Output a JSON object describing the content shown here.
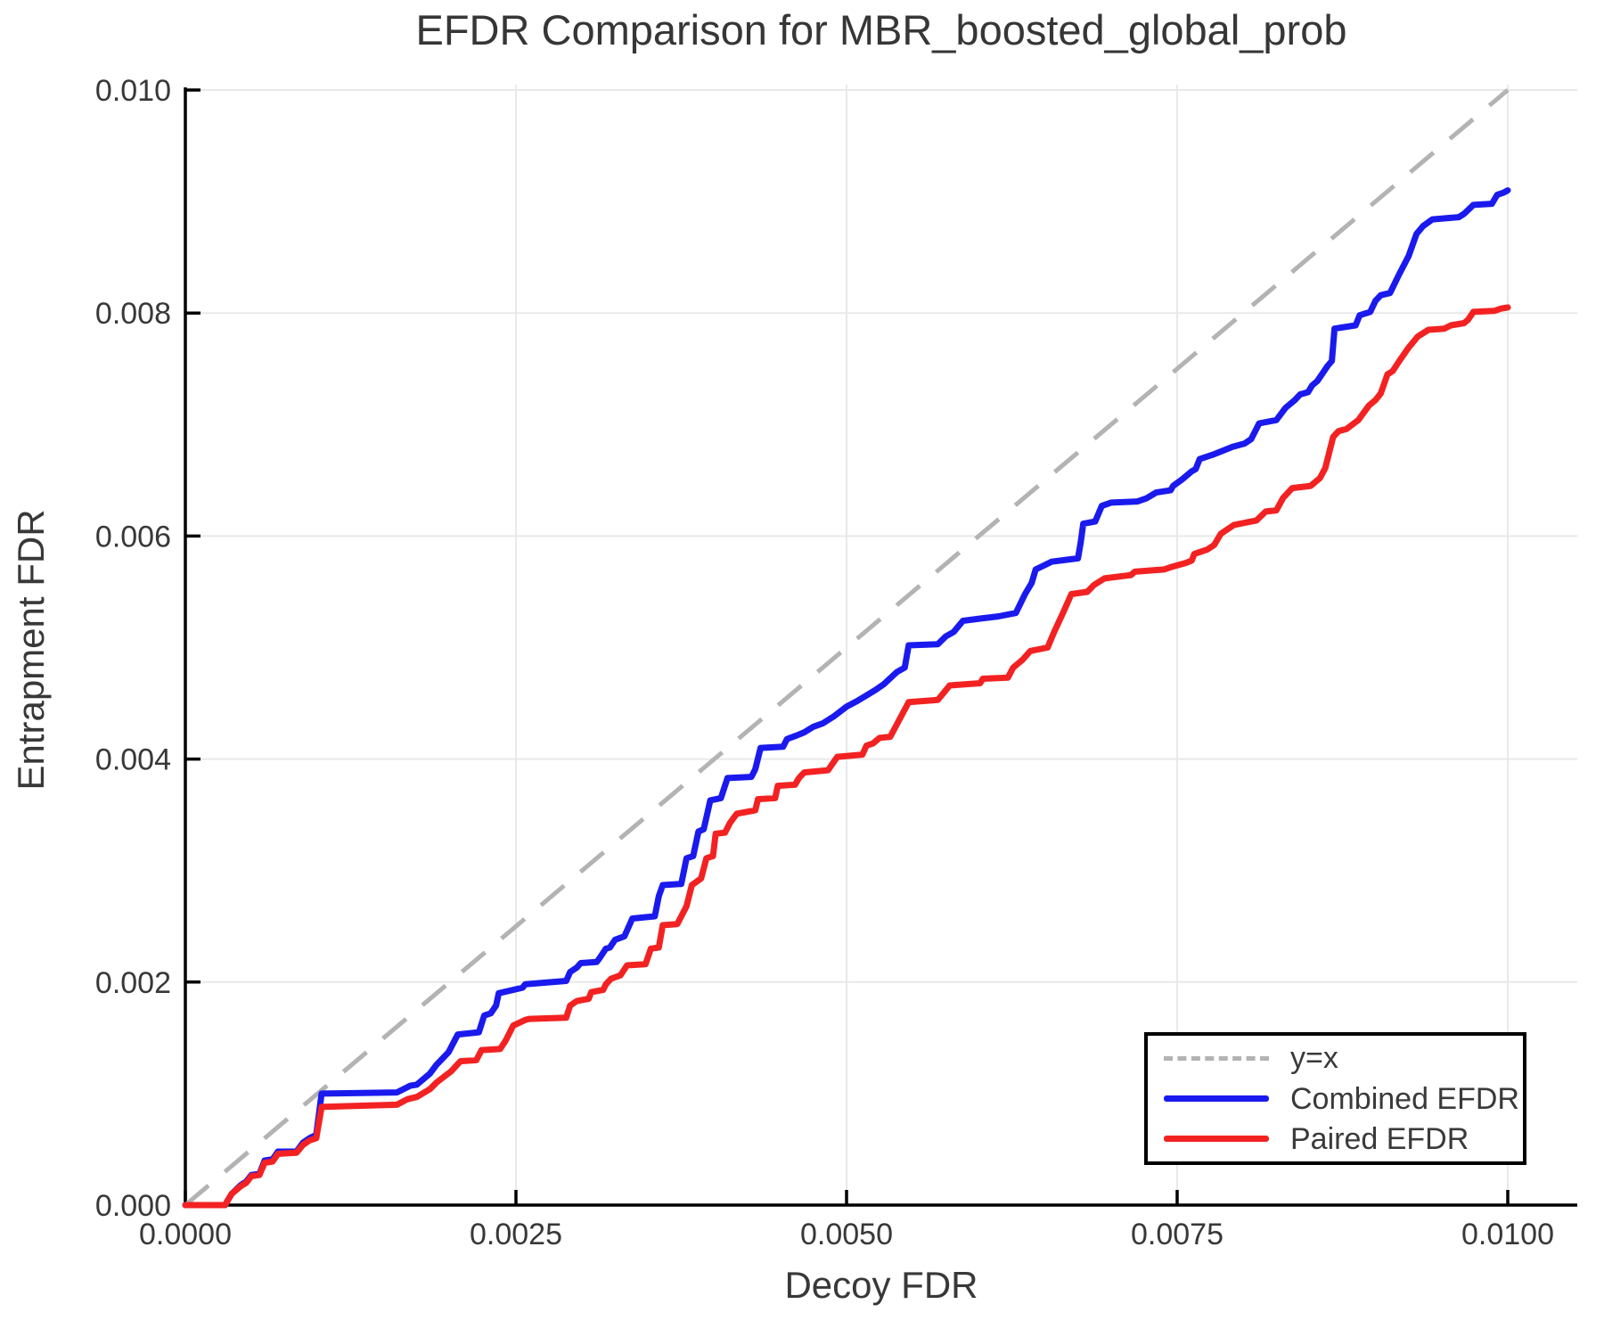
{
  "chart_data": {
    "type": "line",
    "title": "EFDR Comparison for MBR_boosted_global_prob",
    "xlabel": "Decoy FDR",
    "ylabel": "Entrapment FDR",
    "xlim": [
      0.0,
      0.01
    ],
    "ylim": [
      0.0,
      0.01
    ],
    "grid": true,
    "legend_position": "bottom-right",
    "xticks": {
      "values": [
        0.0,
        0.0025,
        0.005,
        0.0075,
        0.01
      ],
      "labels": [
        "0.0000",
        "0.0025",
        "0.0050",
        "0.0075",
        "0.0100"
      ]
    },
    "yticks": {
      "values": [
        0.0,
        0.002,
        0.004,
        0.006,
        0.008,
        0.01
      ],
      "labels": [
        "0.000",
        "0.002",
        "0.004",
        "0.006",
        "0.008",
        "0.010"
      ]
    },
    "reference": {
      "name": "y=x",
      "style": "dashed",
      "color": "#b3b3b3",
      "from": [
        0.0,
        0.0
      ],
      "to": [
        0.01,
        0.01
      ]
    },
    "legend": {
      "items": [
        {
          "label": "y=x",
          "swatch": "dashed"
        },
        {
          "label": "Combined EFDR",
          "swatch": "combined"
        },
        {
          "label": "Paired EFDR",
          "swatch": "paired"
        }
      ]
    },
    "series": [
      {
        "name": "Combined EFDR",
        "color": "#1a1aee",
        "points": [
          [
            0.0,
            0.0
          ],
          [
            0.0003,
            0.0
          ],
          [
            0.00035,
            0.0001
          ],
          [
            0.00042,
            0.00018
          ],
          [
            0.00046,
            0.00021
          ],
          [
            0.0005,
            0.00027
          ],
          [
            0.00056,
            0.00028
          ],
          [
            0.0006,
            0.0004
          ],
          [
            0.00066,
            0.00041
          ],
          [
            0.0007,
            0.00048
          ],
          [
            0.00084,
            0.00048
          ],
          [
            0.00089,
            0.00056
          ],
          [
            0.00094,
            0.0006
          ],
          [
            0.00099,
            0.00063
          ],
          [
            0.00103,
            0.001
          ],
          [
            0.0016,
            0.00101
          ],
          [
            0.00165,
            0.00104
          ],
          [
            0.0017,
            0.00107
          ],
          [
            0.00175,
            0.00108
          ],
          [
            0.00185,
            0.00118
          ],
          [
            0.0019,
            0.00126
          ],
          [
            0.00199,
            0.00137
          ],
          [
            0.00206,
            0.00153
          ],
          [
            0.00222,
            0.00155
          ],
          [
            0.00226,
            0.0017
          ],
          [
            0.00231,
            0.00172
          ],
          [
            0.00235,
            0.00179
          ],
          [
            0.00237,
            0.0019
          ],
          [
            0.00255,
            0.00195
          ],
          [
            0.00257,
            0.00198
          ],
          [
            0.00288,
            0.00201
          ],
          [
            0.00291,
            0.00209
          ],
          [
            0.00296,
            0.00213
          ],
          [
            0.00299,
            0.00217
          ],
          [
            0.00311,
            0.00218
          ],
          [
            0.00313,
            0.00221
          ],
          [
            0.00318,
            0.0023
          ],
          [
            0.00321,
            0.00231
          ],
          [
            0.00325,
            0.00238
          ],
          [
            0.00332,
            0.00241
          ],
          [
            0.00338,
            0.00257
          ],
          [
            0.00355,
            0.00259
          ],
          [
            0.00358,
            0.00277
          ],
          [
            0.00361,
            0.00287
          ],
          [
            0.00375,
            0.00288
          ],
          [
            0.00379,
            0.00311
          ],
          [
            0.00384,
            0.00313
          ],
          [
            0.00388,
            0.00335
          ],
          [
            0.00392,
            0.00337
          ],
          [
            0.00397,
            0.00363
          ],
          [
            0.00405,
            0.00365
          ],
          [
            0.0041,
            0.00383
          ],
          [
            0.00428,
            0.00384
          ],
          [
            0.00431,
            0.00391
          ],
          [
            0.00435,
            0.0041
          ],
          [
            0.00452,
            0.00411
          ],
          [
            0.00455,
            0.00418
          ],
          [
            0.00462,
            0.00421
          ],
          [
            0.00468,
            0.00424
          ],
          [
            0.00475,
            0.00429
          ],
          [
            0.00482,
            0.00432
          ],
          [
            0.0049,
            0.00438
          ],
          [
            0.005,
            0.00447
          ],
          [
            0.00508,
            0.00452
          ],
          [
            0.00515,
            0.00457
          ],
          [
            0.00522,
            0.00462
          ],
          [
            0.00528,
            0.00467
          ],
          [
            0.00538,
            0.00478
          ],
          [
            0.00544,
            0.00482
          ],
          [
            0.00547,
            0.00502
          ],
          [
            0.00569,
            0.00503
          ],
          [
            0.00575,
            0.0051
          ],
          [
            0.00581,
            0.00514
          ],
          [
            0.00588,
            0.00524
          ],
          [
            0.00601,
            0.00526
          ],
          [
            0.00615,
            0.00528
          ],
          [
            0.00628,
            0.00531
          ],
          [
            0.00635,
            0.00548
          ],
          [
            0.0064,
            0.00558
          ],
          [
            0.00643,
            0.0057
          ],
          [
            0.0065,
            0.00574
          ],
          [
            0.00655,
            0.00577
          ],
          [
            0.00675,
            0.0058
          ],
          [
            0.00677,
            0.00594
          ],
          [
            0.00679,
            0.00611
          ],
          [
            0.00688,
            0.00613
          ],
          [
            0.00693,
            0.00627
          ],
          [
            0.007,
            0.0063
          ],
          [
            0.0072,
            0.00631
          ],
          [
            0.00727,
            0.00634
          ],
          [
            0.00734,
            0.00639
          ],
          [
            0.00745,
            0.00641
          ],
          [
            0.00747,
            0.00645
          ],
          [
            0.00754,
            0.00651
          ],
          [
            0.00761,
            0.00658
          ],
          [
            0.00764,
            0.0066
          ],
          [
            0.00767,
            0.00669
          ],
          [
            0.00777,
            0.00673
          ],
          [
            0.00792,
            0.0068
          ],
          [
            0.00801,
            0.00683
          ],
          [
            0.00806,
            0.00687
          ],
          [
            0.00812,
            0.00701
          ],
          [
            0.00825,
            0.00704
          ],
          [
            0.00832,
            0.00715
          ],
          [
            0.00839,
            0.00722
          ],
          [
            0.00843,
            0.00727
          ],
          [
            0.00849,
            0.00729
          ],
          [
            0.00852,
            0.00735
          ],
          [
            0.00856,
            0.00739
          ],
          [
            0.00864,
            0.00753
          ],
          [
            0.00867,
            0.00757
          ],
          [
            0.00869,
            0.00786
          ],
          [
            0.00885,
            0.00789
          ],
          [
            0.00888,
            0.00798
          ],
          [
            0.00896,
            0.00801
          ],
          [
            0.009,
            0.00811
          ],
          [
            0.00904,
            0.00816
          ],
          [
            0.00911,
            0.00818
          ],
          [
            0.00918,
            0.00835
          ],
          [
            0.00925,
            0.00851
          ],
          [
            0.00931,
            0.00871
          ],
          [
            0.00936,
            0.00878
          ],
          [
            0.00943,
            0.00884
          ],
          [
            0.00963,
            0.00886
          ],
          [
            0.00967,
            0.00889
          ],
          [
            0.00974,
            0.00897
          ],
          [
            0.00988,
            0.00898
          ],
          [
            0.00992,
            0.00906
          ],
          [
            0.00997,
            0.00908
          ],
          [
            0.01,
            0.0091
          ]
        ]
      },
      {
        "name": "Paired EFDR",
        "color": "#f32222",
        "points": [
          [
            0.0,
            0.0
          ],
          [
            0.0003,
            0.0
          ],
          [
            0.00035,
            0.0001
          ],
          [
            0.00042,
            0.00017
          ],
          [
            0.00046,
            0.0002
          ],
          [
            0.0005,
            0.00026
          ],
          [
            0.00056,
            0.00027
          ],
          [
            0.0006,
            0.00038
          ],
          [
            0.00066,
            0.00039
          ],
          [
            0.0007,
            0.00046
          ],
          [
            0.00084,
            0.00047
          ],
          [
            0.00089,
            0.00054
          ],
          [
            0.00094,
            0.00058
          ],
          [
            0.00099,
            0.0006
          ],
          [
            0.00103,
            0.00088
          ],
          [
            0.0016,
            0.0009
          ],
          [
            0.00168,
            0.00095
          ],
          [
            0.00175,
            0.00097
          ],
          [
            0.00185,
            0.00104
          ],
          [
            0.0019,
            0.0011
          ],
          [
            0.00201,
            0.0012
          ],
          [
            0.00208,
            0.00129
          ],
          [
            0.0022,
            0.0013
          ],
          [
            0.00224,
            0.00139
          ],
          [
            0.00238,
            0.0014
          ],
          [
            0.00242,
            0.00147
          ],
          [
            0.00248,
            0.00161
          ],
          [
            0.00257,
            0.00166
          ],
          [
            0.0026,
            0.00167
          ],
          [
            0.00288,
            0.00168
          ],
          [
            0.00291,
            0.00179
          ],
          [
            0.00296,
            0.00183
          ],
          [
            0.00305,
            0.00185
          ],
          [
            0.00307,
            0.00191
          ],
          [
            0.00316,
            0.00193
          ],
          [
            0.00318,
            0.00198
          ],
          [
            0.00322,
            0.00203
          ],
          [
            0.00329,
            0.00206
          ],
          [
            0.00334,
            0.00215
          ],
          [
            0.00348,
            0.00216
          ],
          [
            0.00352,
            0.0023
          ],
          [
            0.00358,
            0.00231
          ],
          [
            0.00361,
            0.00251
          ],
          [
            0.00372,
            0.00252
          ],
          [
            0.00379,
            0.00268
          ],
          [
            0.00383,
            0.00287
          ],
          [
            0.0039,
            0.00293
          ],
          [
            0.00394,
            0.00311
          ],
          [
            0.00399,
            0.00313
          ],
          [
            0.00401,
            0.00333
          ],
          [
            0.00408,
            0.00334
          ],
          [
            0.00412,
            0.00343
          ],
          [
            0.00417,
            0.00351
          ],
          [
            0.00431,
            0.00354
          ],
          [
            0.00433,
            0.00364
          ],
          [
            0.00446,
            0.00365
          ],
          [
            0.00448,
            0.00376
          ],
          [
            0.00461,
            0.00377
          ],
          [
            0.00464,
            0.00383
          ],
          [
            0.00468,
            0.00388
          ],
          [
            0.00486,
            0.0039
          ],
          [
            0.00493,
            0.00402
          ],
          [
            0.00512,
            0.00404
          ],
          [
            0.00515,
            0.00412
          ],
          [
            0.0052,
            0.00414
          ],
          [
            0.00525,
            0.00419
          ],
          [
            0.00533,
            0.0042
          ],
          [
            0.00547,
            0.00451
          ],
          [
            0.00569,
            0.00453
          ],
          [
            0.00578,
            0.00466
          ],
          [
            0.00601,
            0.00468
          ],
          [
            0.00603,
            0.00472
          ],
          [
            0.00622,
            0.00473
          ],
          [
            0.00626,
            0.00482
          ],
          [
            0.00633,
            0.00489
          ],
          [
            0.00639,
            0.00497
          ],
          [
            0.00652,
            0.005
          ],
          [
            0.00657,
            0.00514
          ],
          [
            0.00664,
            0.00532
          ],
          [
            0.0067,
            0.00548
          ],
          [
            0.00682,
            0.0055
          ],
          [
            0.00687,
            0.00556
          ],
          [
            0.00695,
            0.00562
          ],
          [
            0.00715,
            0.00565
          ],
          [
            0.00718,
            0.00568
          ],
          [
            0.0074,
            0.0057
          ],
          [
            0.00745,
            0.00572
          ],
          [
            0.00757,
            0.00576
          ],
          [
            0.00761,
            0.00578
          ],
          [
            0.00763,
            0.00584
          ],
          [
            0.00773,
            0.00588
          ],
          [
            0.00778,
            0.00592
          ],
          [
            0.00783,
            0.00602
          ],
          [
            0.00793,
            0.0061
          ],
          [
            0.0081,
            0.00614
          ],
          [
            0.00817,
            0.00622
          ],
          [
            0.00825,
            0.00623
          ],
          [
            0.0083,
            0.00634
          ],
          [
            0.00837,
            0.00643
          ],
          [
            0.00851,
            0.00645
          ],
          [
            0.00858,
            0.00652
          ],
          [
            0.00862,
            0.00661
          ],
          [
            0.00868,
            0.00689
          ],
          [
            0.00872,
            0.00694
          ],
          [
            0.00878,
            0.00696
          ],
          [
            0.00887,
            0.00704
          ],
          [
            0.00895,
            0.00717
          ],
          [
            0.009,
            0.00722
          ],
          [
            0.00904,
            0.00728
          ],
          [
            0.00909,
            0.00745
          ],
          [
            0.00913,
            0.00748
          ],
          [
            0.00918,
            0.00757
          ],
          [
            0.00925,
            0.00769
          ],
          [
            0.00932,
            0.00779
          ],
          [
            0.0094,
            0.00785
          ],
          [
            0.00952,
            0.00786
          ],
          [
            0.00957,
            0.00789
          ],
          [
            0.00967,
            0.00791
          ],
          [
            0.0097,
            0.00794
          ],
          [
            0.00974,
            0.00801
          ],
          [
            0.0099,
            0.00802
          ],
          [
            0.00995,
            0.00804
          ],
          [
            0.01,
            0.00805
          ]
        ]
      }
    ]
  }
}
